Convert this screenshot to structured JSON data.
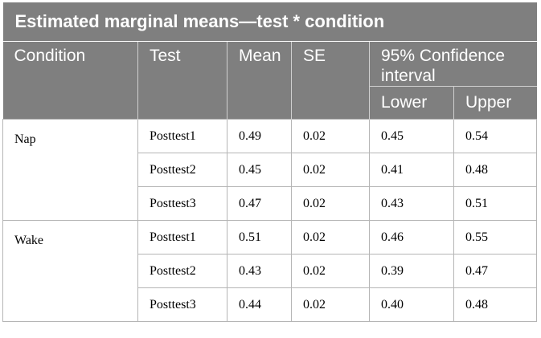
{
  "caption": "Estimated marginal means—test * condition",
  "headers": {
    "condition": "Condition",
    "test": "Test",
    "mean": "Mean",
    "se": "SE",
    "ci": "95% Confidence interval",
    "lower": "Lower",
    "upper": "Upper"
  },
  "groups": [
    {
      "condition": "Nap",
      "rows": [
        {
          "test": "Posttest1",
          "mean": "0.49",
          "se": "0.02",
          "lower": "0.45",
          "upper": "0.54"
        },
        {
          "test": "Posttest2",
          "mean": "0.45",
          "se": "0.02",
          "lower": "0.41",
          "upper": "0.48"
        },
        {
          "test": "Posttest3",
          "mean": "0.47",
          "se": "0.02",
          "lower": "0.43",
          "upper": "0.51"
        }
      ]
    },
    {
      "condition": "Wake",
      "rows": [
        {
          "test": "Posttest1",
          "mean": "0.51",
          "se": "0.02",
          "lower": "0.46",
          "upper": "0.55"
        },
        {
          "test": "Posttest2",
          "mean": "0.43",
          "se": "0.02",
          "lower": "0.39",
          "upper": "0.47"
        },
        {
          "test": "Posttest3",
          "mean": "0.44",
          "se": "0.02",
          "lower": "0.40",
          "upper": "0.48"
        }
      ]
    }
  ],
  "colors": {
    "header_bg": "#7f7f7f",
    "header_text": "#ffffff",
    "grid_line": "#b5b5b5"
  }
}
